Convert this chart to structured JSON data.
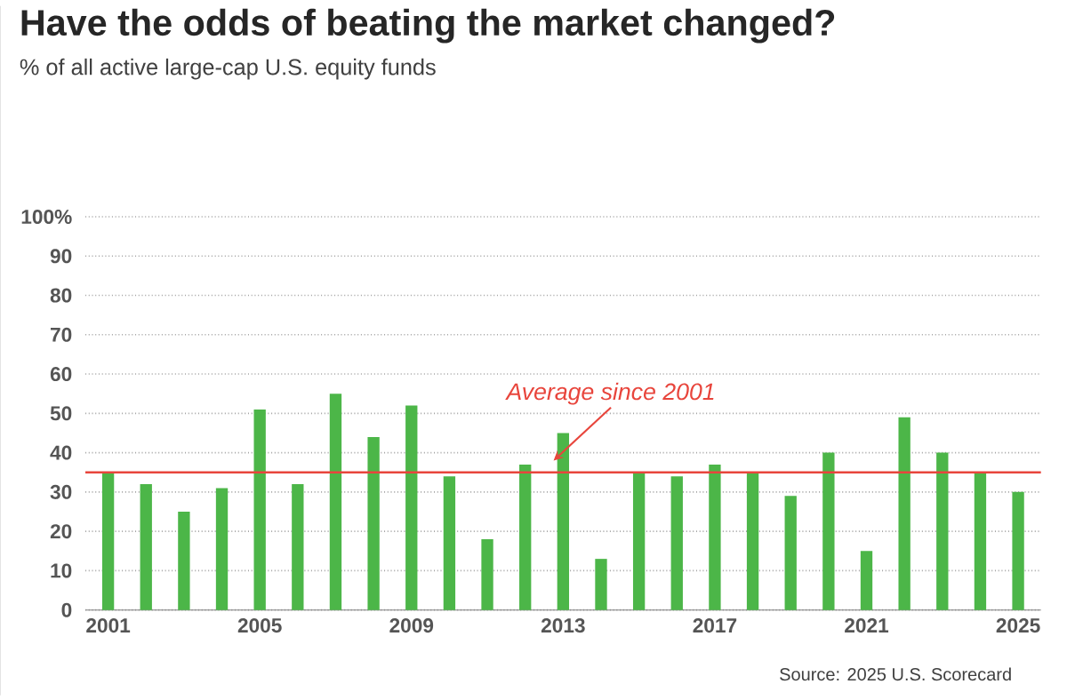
{
  "chart_data": {
    "type": "bar",
    "title": "Have the odds of beating the market changed?",
    "subtitle": "% of all active large-cap U.S. equity funds",
    "x": [
      2001,
      2002,
      2003,
      2004,
      2005,
      2006,
      2007,
      2008,
      2009,
      2010,
      2011,
      2012,
      2013,
      2014,
      2015,
      2016,
      2017,
      2018,
      2019,
      2020,
      2021,
      2022,
      2023,
      2024,
      2025
    ],
    "values": [
      35,
      32,
      25,
      31,
      51,
      32,
      55,
      44,
      52,
      34,
      18,
      37,
      45,
      13,
      35,
      34,
      37,
      35,
      29,
      40,
      15,
      49,
      40,
      35,
      30
    ],
    "color": "#4cb648",
    "xlim": [
      2000.4,
      2025.6
    ],
    "xticks": [
      2001,
      2005,
      2009,
      2013,
      2017,
      2021,
      2025
    ],
    "ylim": [
      0,
      100
    ],
    "yticks": [
      0,
      10,
      20,
      30,
      40,
      50,
      60,
      70,
      80,
      90,
      {
        "value": 100,
        "label": "100%"
      }
    ],
    "grid": "y",
    "ref_lines": [
      {
        "axis": "y",
        "value": 35,
        "label": "Average since 2001",
        "color": "#e8453c"
      }
    ],
    "annotations": [
      "Source: 2025 U.S. Scorecard"
    ]
  }
}
